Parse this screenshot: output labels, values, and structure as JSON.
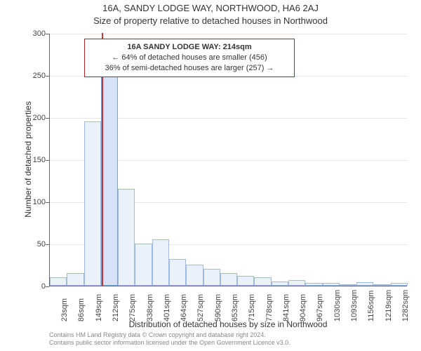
{
  "title": "16A, SANDY LODGE WAY, NORTHWOOD, HA6 2AJ",
  "subtitle": "Size of property relative to detached houses in Northwood",
  "chart": {
    "type": "histogram",
    "ylabel": "Number of detached properties",
    "xlabel": "Distribution of detached houses by size in Northwood",
    "ylim": [
      0,
      300
    ],
    "ytick_step": 50,
    "yticks": [
      0,
      50,
      100,
      150,
      200,
      250,
      300
    ],
    "label_fontsize": 12,
    "tick_fontsize": 11,
    "background_color": "#ffffff",
    "grid_color": "#e7e7e7",
    "axis_color": "#666666",
    "bar_fill": "#eaf1fb",
    "bar_border": "#9fb9e1",
    "bar_width": 1.0,
    "highlight_fill": "#d6e3f7",
    "highlight_border": "#7a9fd6",
    "marker_color": "#c0392b",
    "marker_value_x": 214,
    "categories": [
      "23sqm",
      "86sqm",
      "149sqm",
      "212sqm",
      "275sqm",
      "338sqm",
      "401sqm",
      "464sqm",
      "527sqm",
      "590sqm",
      "653sqm",
      "715sqm",
      "778sqm",
      "841sqm",
      "904sqm",
      "967sqm",
      "1030sqm",
      "1093sqm",
      "1156sqm",
      "1219sqm",
      "1282sqm"
    ],
    "values": [
      10,
      15,
      195,
      255,
      115,
      50,
      55,
      32,
      25,
      20,
      15,
      12,
      10,
      5,
      7,
      3,
      3,
      2,
      4,
      2,
      3
    ]
  },
  "highlight_index": 3,
  "info_box": {
    "line1": "16A SANDY LODGE WAY: 214sqm",
    "line2": "← 64% of detached houses are smaller (456)",
    "line3": "36% of semi-detached houses are larger (257) →",
    "border_color": "#b22222",
    "background_color": "#ffffff",
    "fontsize": 11
  },
  "footer": {
    "line1": "Contains HM Land Registry data © Crown copyright and database right 2024.",
    "line2": "Contains public sector information licensed under the Open Government Licence v3.0.",
    "color": "#888888",
    "fontsize": 9
  }
}
